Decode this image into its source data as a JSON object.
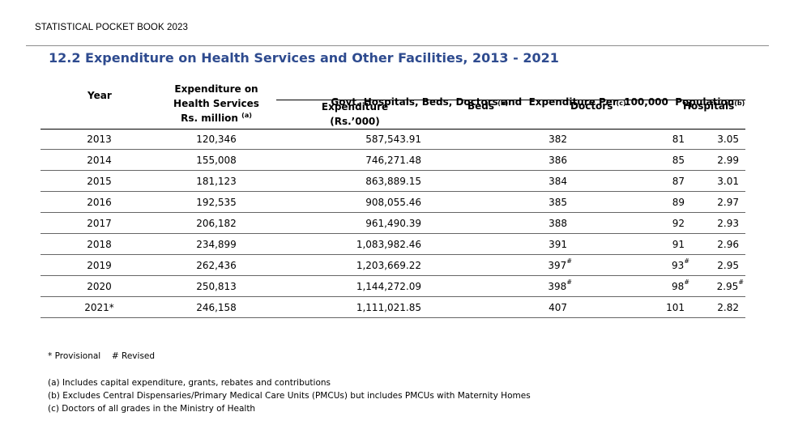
{
  "header": {
    "book_label": "STATISTICAL POCKET BOOK 2023"
  },
  "title": "12.2 Expenditure on Health Services and Other Facilities, 2013 - 2021",
  "columns": {
    "year": "Year",
    "expenditure_line1": "Expenditure on",
    "expenditure_line2": "Health Services",
    "expenditure_line3": "Rs. million",
    "expenditure_note": "(a)",
    "group_header": "Govt. Hospitals, Beds, Doctors and  Expenditure Per  100,000  Population",
    "per_exp_line1": "Expenditure",
    "per_exp_line2": "(Rs.’000)",
    "beds": "Beds",
    "beds_note": "(b)",
    "doctors": "Doctors",
    "doctors_note": "(c)",
    "hospitals": "Hospitals",
    "hospitals_note": "(b)"
  },
  "rows": [
    {
      "year": "2013",
      "exp_health": "120,346",
      "exp_per": "587,543.91",
      "beds": "382",
      "beds_mark": "",
      "doctors": "81",
      "doctors_mark": "",
      "hospitals": "3.05",
      "hospitals_mark": ""
    },
    {
      "year": "2014",
      "exp_health": "155,008",
      "exp_per": "746,271.48",
      "beds": "386",
      "beds_mark": "",
      "doctors": "85",
      "doctors_mark": "",
      "hospitals": "2.99",
      "hospitals_mark": ""
    },
    {
      "year": "2015",
      "exp_health": "181,123",
      "exp_per": "863,889.15",
      "beds": "384",
      "beds_mark": "",
      "doctors": "87",
      "doctors_mark": "",
      "hospitals": "3.01",
      "hospitals_mark": ""
    },
    {
      "year": "2016",
      "exp_health": "192,535",
      "exp_per": "908,055.46",
      "beds": "385",
      "beds_mark": "",
      "doctors": "89",
      "doctors_mark": "",
      "hospitals": "2.97",
      "hospitals_mark": ""
    },
    {
      "year": "2017",
      "exp_health": "206,182",
      "exp_per": "961,490.39",
      "beds": "388",
      "beds_mark": "",
      "doctors": "92",
      "doctors_mark": "",
      "hospitals": "2.93",
      "hospitals_mark": ""
    },
    {
      "year": "2018",
      "exp_health": "234,899",
      "exp_per": "1,083,982.46",
      "beds": "391",
      "beds_mark": "",
      "doctors": "91",
      "doctors_mark": "",
      "hospitals": "2.96",
      "hospitals_mark": ""
    },
    {
      "year": "2019",
      "exp_health": "262,436",
      "exp_per": "1,203,669.22",
      "beds": "397",
      "beds_mark": "#",
      "doctors": "93",
      "doctors_mark": "#",
      "hospitals": "2.95",
      "hospitals_mark": ""
    },
    {
      "year": "2020",
      "exp_health": "250,813",
      "exp_per": "1,144,272.09",
      "beds": "398",
      "beds_mark": "#",
      "doctors": "98",
      "doctors_mark": "#",
      "hospitals": "2.95",
      "hospitals_mark": "#"
    },
    {
      "year": "2021*",
      "exp_health": "246,158",
      "exp_per": "1,111,021.85",
      "beds": "407",
      "beds_mark": "",
      "doctors": "101",
      "doctors_mark": "",
      "hospitals": "2.82",
      "hospitals_mark": ""
    }
  ],
  "notes": {
    "provisional": "* Provisional",
    "revised": "# Revised",
    "a": "(a) Includes capital expenditure, grants, rebates and contributions",
    "b": "(b) Excludes Central Dispensaries/Primary Medical Care Units (PMCUs) but includes PMCUs with Maternity Homes",
    "c": "(c) Doctors of all grades in the Ministry of Health"
  }
}
